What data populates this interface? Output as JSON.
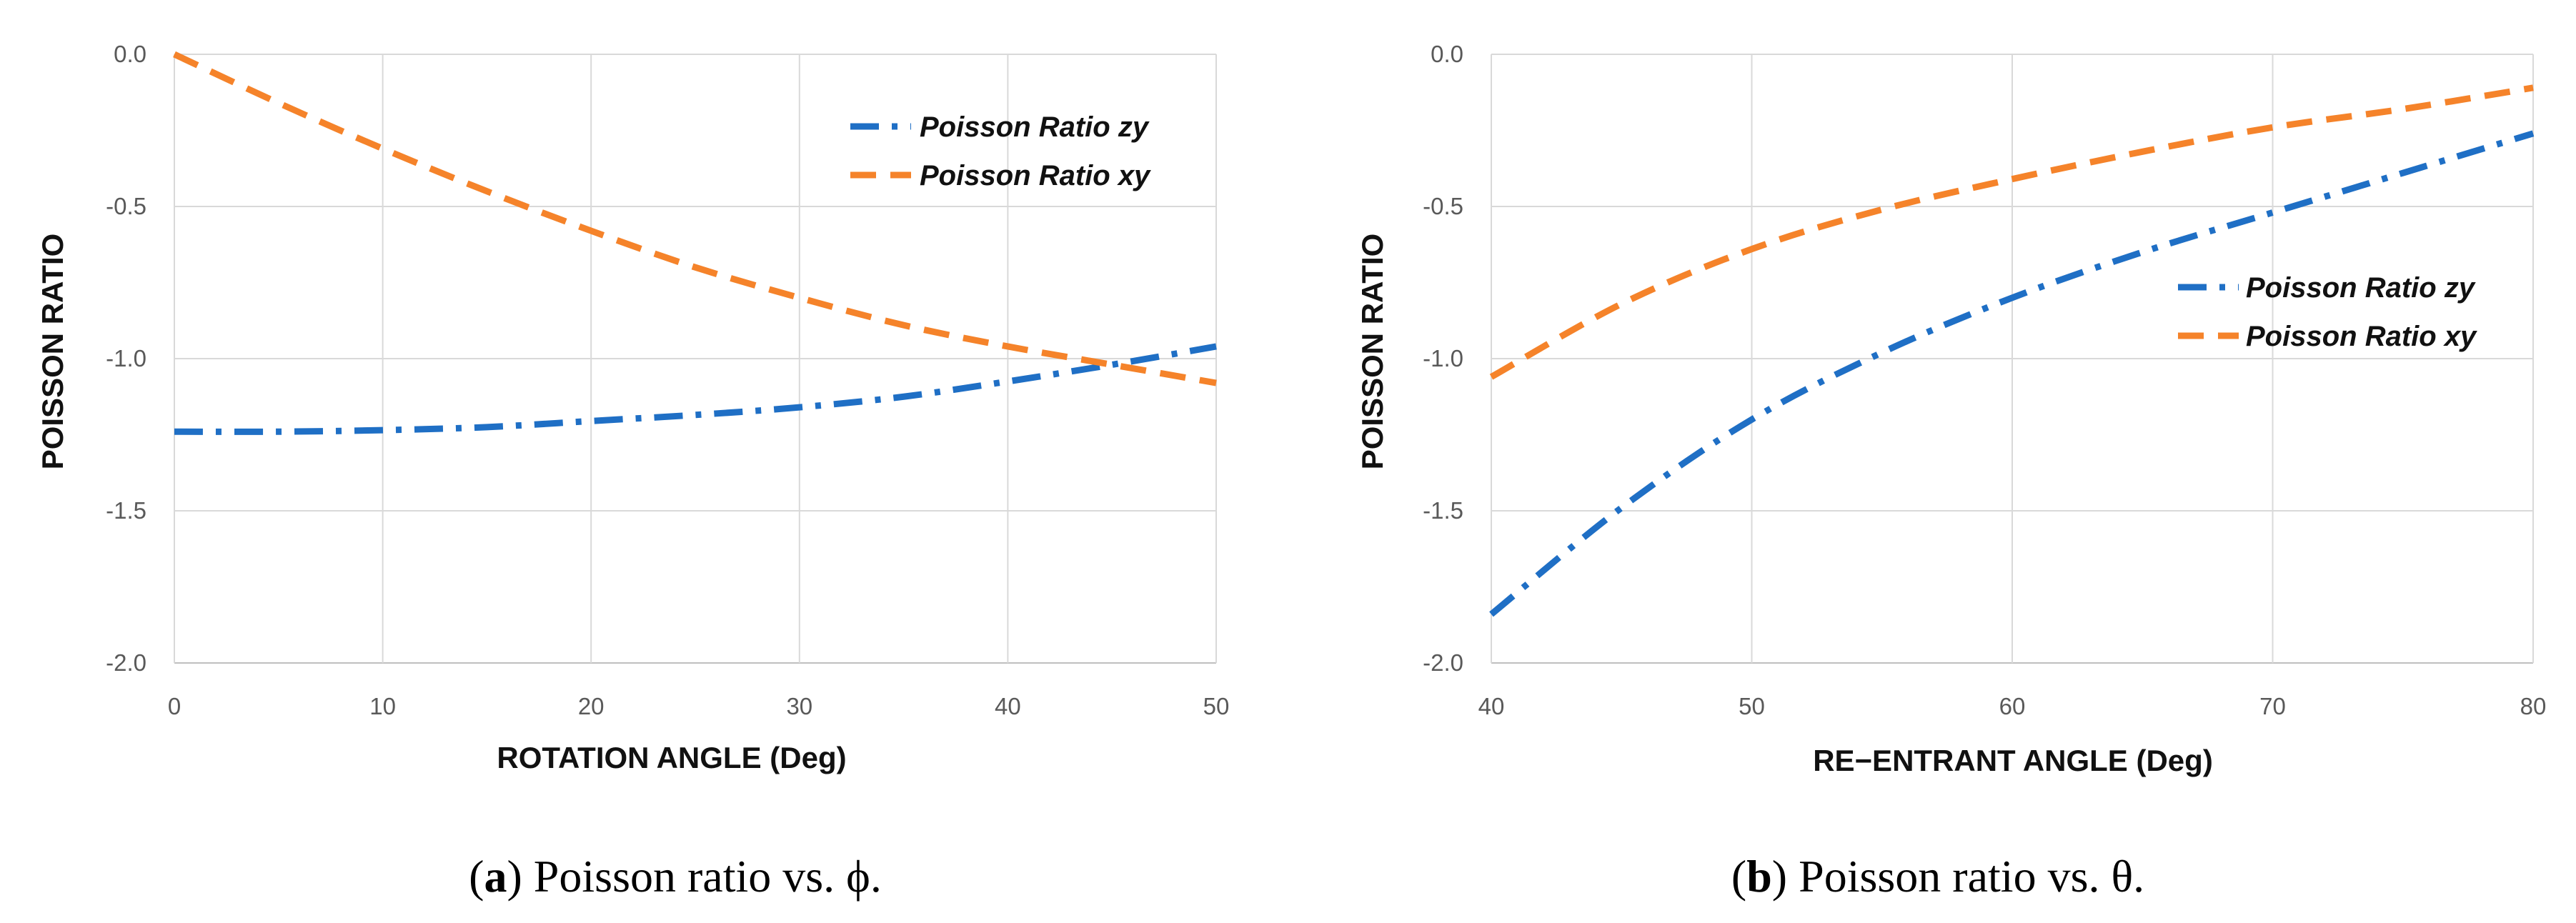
{
  "chart_data": [
    {
      "type": "line",
      "panel_label": "a",
      "caption": " Poisson ratio vs. ϕ.",
      "xlabel": "ROTATION ANGLE (Deg)",
      "ylabel": "POISSON RATIO",
      "xlim": [
        0,
        50
      ],
      "ylim": [
        -2.0,
        0.0
      ],
      "x_ticks": [
        "0",
        "10",
        "20",
        "30",
        "40",
        "50"
      ],
      "y_ticks": [
        "0.0",
        "-0.5",
        "-1.0",
        "-1.5",
        "-2.0"
      ],
      "grid": true,
      "legend_position": "top-right",
      "series": [
        {
          "name": "Poisson Ratio zy",
          "color": "#1f6fc5",
          "dash": "dash-dot",
          "x": [
            0,
            5,
            10,
            15,
            20,
            25,
            30,
            35,
            40,
            45,
            50
          ],
          "y": [
            -1.24,
            -1.24,
            -1.235,
            -1.225,
            -1.205,
            -1.185,
            -1.16,
            -1.125,
            -1.075,
            -1.02,
            -0.96
          ]
        },
        {
          "name": "Poisson Ratio xy",
          "color": "#f5832a",
          "dash": "dash",
          "x": [
            0,
            5,
            10,
            15,
            20,
            25,
            30,
            35,
            40,
            45,
            50
          ],
          "y": [
            0.0,
            -0.16,
            -0.31,
            -0.45,
            -0.58,
            -0.7,
            -0.8,
            -0.89,
            -0.96,
            -1.02,
            -1.08
          ]
        }
      ]
    },
    {
      "type": "line",
      "panel_label": "b",
      "caption": " Poisson ratio vs. θ.",
      "xlabel": "RE−ENTRANT ANGLE (Deg)",
      "ylabel": "POISSON RATIO",
      "xlim": [
        40,
        80
      ],
      "ylim": [
        -2.0,
        0.0
      ],
      "x_ticks": [
        "40",
        "50",
        "60",
        "70",
        "80"
      ],
      "y_ticks": [
        "0.0",
        "-0.5",
        "-1.0",
        "-1.5",
        "-2.0"
      ],
      "grid": true,
      "legend_position": "right",
      "series": [
        {
          "name": "Poisson Ratio zy",
          "color": "#1f6fc5",
          "dash": "dash-dot",
          "x": [
            40,
            45,
            50,
            55,
            60,
            65,
            70,
            75,
            80
          ],
          "y": [
            -1.84,
            -1.49,
            -1.2,
            -0.98,
            -0.8,
            -0.65,
            -0.52,
            -0.39,
            -0.26
          ]
        },
        {
          "name": "Poisson Ratio xy",
          "color": "#f5832a",
          "dash": "dash",
          "x": [
            40,
            45,
            50,
            55,
            60,
            65,
            70,
            75,
            80
          ],
          "y": [
            -1.06,
            -0.82,
            -0.64,
            -0.51,
            -0.41,
            -0.32,
            -0.24,
            -0.18,
            -0.11
          ]
        }
      ]
    }
  ]
}
